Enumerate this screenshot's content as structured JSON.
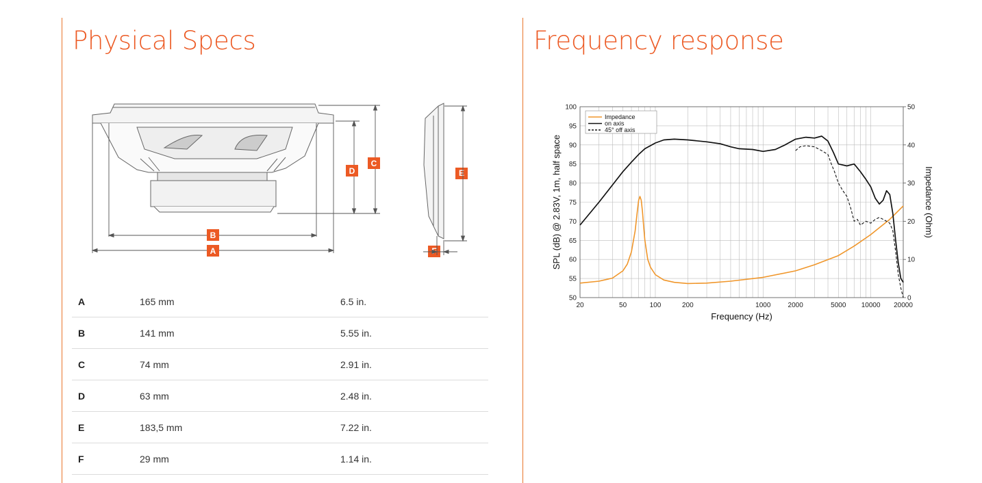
{
  "headings": {
    "physical_specs": "Physical Specs",
    "frequency_response": "Frequency response"
  },
  "diagram_labels": {
    "a": "A",
    "b": "B",
    "c": "C",
    "d": "D",
    "e": "E",
    "f": "F"
  },
  "specs": [
    {
      "label": "A",
      "mm": "165 mm",
      "inch": "6.5 in."
    },
    {
      "label": "B",
      "mm": "141 mm",
      "inch": "5.55 in."
    },
    {
      "label": "C",
      "mm": "74 mm",
      "inch": "2.91 in."
    },
    {
      "label": "D",
      "mm": "63 mm",
      "inch": "2.48 in."
    },
    {
      "label": "E",
      "mm": "183,5 mm",
      "inch": "7.22 in."
    },
    {
      "label": "F",
      "mm": "29 mm",
      "inch": "1.14 in."
    }
  ],
  "colors": {
    "accent": "#ec5a24",
    "impedance": "#f0962a",
    "on_axis": "#111111"
  },
  "chart_data": {
    "type": "line",
    "xscale": "log",
    "xlabel": "Frequency (Hz)",
    "ylabel": "SPL (dB) @ 2.83V, 1m, half space",
    "y2label": "Impedance (Ohm)",
    "xlim": [
      20,
      20000
    ],
    "ylim": [
      50,
      100
    ],
    "y2lim": [
      0,
      50
    ],
    "xticks": [
      20,
      50,
      100,
      200,
      1000,
      2000,
      5000,
      10000,
      20000
    ],
    "xtick_labels": [
      "20",
      "50",
      "100",
      "200",
      "1000",
      "2000",
      "5000",
      "10000",
      "20000"
    ],
    "yticks": [
      50,
      55,
      60,
      65,
      70,
      75,
      80,
      85,
      90,
      95,
      100
    ],
    "y2ticks": [
      0,
      10,
      20,
      30,
      40,
      50
    ],
    "grid": true,
    "legend": "top-left",
    "series": [
      {
        "name": "Impedance",
        "axis": "right",
        "style": "solid",
        "color": "#f0962a",
        "x": [
          20,
          30,
          40,
          50,
          55,
          60,
          65,
          68,
          70,
          72,
          74,
          76,
          78,
          80,
          85,
          90,
          100,
          120,
          150,
          200,
          300,
          500,
          1000,
          2000,
          3000,
          5000,
          7000,
          10000,
          15000,
          20000
        ],
        "y": [
          3.8,
          4.3,
          5.1,
          7.0,
          8.8,
          12.0,
          17.5,
          22.5,
          25.5,
          26.5,
          25.5,
          22.5,
          18.5,
          15.0,
          10.0,
          8.0,
          6.0,
          4.6,
          4.0,
          3.7,
          3.8,
          4.3,
          5.3,
          7.0,
          8.6,
          11.0,
          13.5,
          16.5,
          20.5,
          24.0
        ]
      },
      {
        "name": "on axis",
        "axis": "left",
        "style": "solid",
        "color": "#111111",
        "x": [
          20,
          30,
          40,
          50,
          60,
          70,
          80,
          100,
          120,
          150,
          200,
          300,
          400,
          500,
          600,
          800,
          1000,
          1300,
          1600,
          2000,
          2500,
          3000,
          3500,
          4000,
          4500,
          5000,
          6000,
          7000,
          8000,
          9000,
          10000,
          11000,
          12000,
          13000,
          14000,
          15000,
          16000,
          17000,
          18000,
          19000,
          20000
        ],
        "y": [
          69,
          75,
          79.5,
          83,
          85.5,
          87.5,
          89,
          90.5,
          91.3,
          91.5,
          91.3,
          90.8,
          90.3,
          89.5,
          89.0,
          88.8,
          88.3,
          88.8,
          90.0,
          91.5,
          92.0,
          91.8,
          92.3,
          91.0,
          88.0,
          85.0,
          84.5,
          85.0,
          83.0,
          81.0,
          79.0,
          76.0,
          74.5,
          75.5,
          78.0,
          77.0,
          72.0,
          65.0,
          59.0,
          55.0,
          54.0
        ]
      },
      {
        "name": "45° off axis",
        "axis": "left",
        "style": "dashed",
        "color": "#111111",
        "x": [
          2000,
          2200,
          2500,
          3000,
          3500,
          4000,
          4300,
          4600,
          5000,
          5500,
          6000,
          6500,
          7000,
          7500,
          8000,
          9000,
          10000,
          11000,
          12000,
          13000,
          14000,
          15000,
          16000,
          17000,
          18000,
          19000,
          20000
        ],
        "y": [
          88.5,
          89.5,
          89.8,
          89.5,
          88.5,
          87.5,
          85.0,
          83.0,
          80.0,
          78.0,
          76.5,
          73.5,
          70.0,
          70.5,
          69.0,
          70.0,
          69.5,
          70.5,
          71.0,
          70.5,
          70.0,
          69.5,
          67.5,
          62.0,
          56.0,
          52.5,
          50.0
        ]
      }
    ]
  }
}
